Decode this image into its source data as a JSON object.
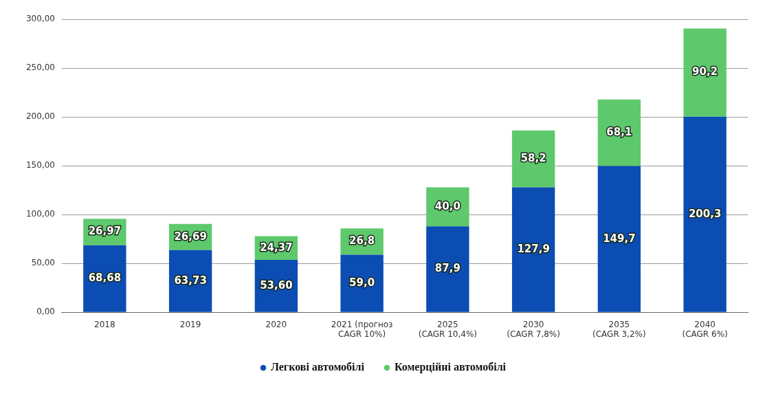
{
  "chart_data": {
    "type": "bar",
    "stacked": true,
    "categories": [
      "2018",
      "2019",
      "2020",
      "2021 (прогноз\nCAGR 10%)",
      "2025\n(CAGR 10,4%)",
      "2030\n(CAGR 7,8%)",
      "2035\n(CAGR 3,2%)",
      "2040\n(CAGR 6%)"
    ],
    "series": [
      {
        "name": "Легкові автомобілі",
        "color": "#0b4db3",
        "values": [
          68.68,
          63.73,
          53.6,
          59.0,
          87.9,
          127.9,
          149.7,
          200.3
        ],
        "value_labels": [
          "68,68",
          "63,73",
          "53,60",
          "59,0",
          "87,9",
          "127,9",
          "149,7",
          "200,3"
        ]
      },
      {
        "name": "Комерційні автомобілі",
        "color": "#5ec96c",
        "values": [
          26.97,
          26.69,
          24.37,
          26.8,
          40.0,
          58.2,
          68.1,
          90.2
        ],
        "value_labels": [
          "26,97",
          "26,69",
          "24,37",
          "26,8",
          "40,0",
          "58,2",
          "68,1",
          "90,2"
        ]
      }
    ],
    "ylim": [
      0,
      300
    ],
    "yticks": [
      {
        "value": 0,
        "label": "0,00"
      },
      {
        "value": 50,
        "label": "50,00"
      },
      {
        "value": 100,
        "label": "100,00"
      },
      {
        "value": 150,
        "label": "150,00"
      },
      {
        "value": 200,
        "label": "200,00"
      },
      {
        "value": 250,
        "label": "250,00"
      },
      {
        "value": 300,
        "label": "300,00"
      }
    ],
    "grid": "y",
    "legend": "bottom"
  }
}
